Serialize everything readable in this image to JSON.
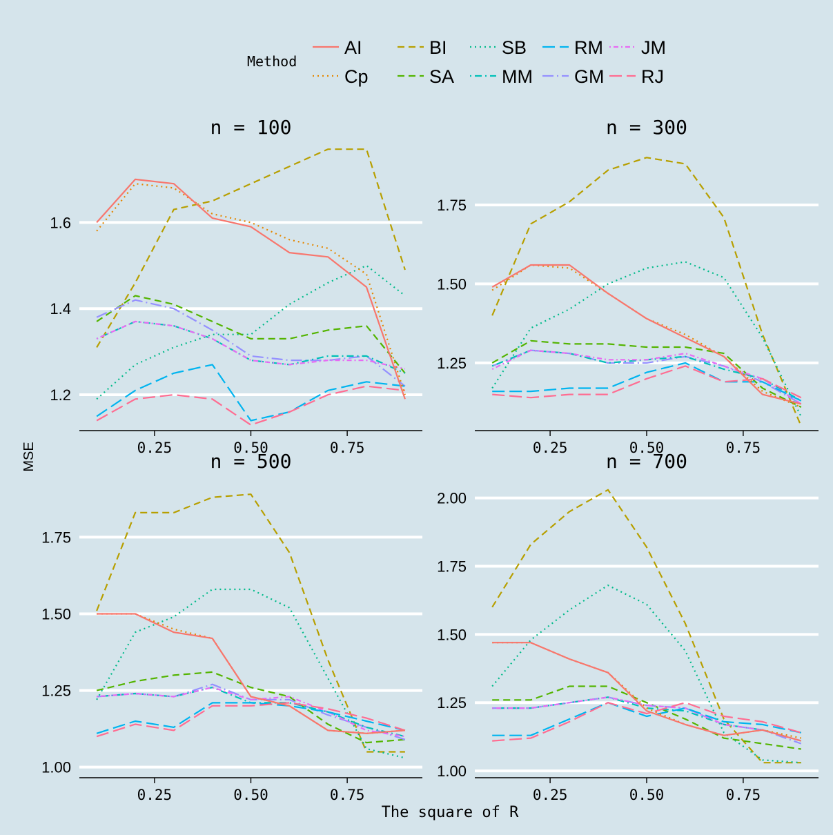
{
  "legend": {
    "title": "Method",
    "placement": "top",
    "methods": [
      {
        "name": "AI",
        "color": "#F8766D",
        "dash": "solid"
      },
      {
        "name": "BI",
        "color": "#B79F00",
        "dash": "dashed"
      },
      {
        "name": "SB",
        "color": "#00BA8A",
        "dash": "dotted"
      },
      {
        "name": "RM",
        "color": "#00B4EF",
        "dash": "longdash"
      },
      {
        "name": "JM",
        "color": "#E76BF3",
        "dash": "dotdash-pink"
      },
      {
        "name": "Cp",
        "color": "#E58700",
        "dash": "dotted"
      },
      {
        "name": "SA",
        "color": "#53B400",
        "dash": "dashed"
      },
      {
        "name": "MM",
        "color": "#00C0B8",
        "dash": "dotdash"
      },
      {
        "name": "GM",
        "color": "#9590FF",
        "dash": "longdashdot"
      },
      {
        "name": "RJ",
        "color": "#FF6C91",
        "dash": "longdash"
      }
    ]
  },
  "axes": {
    "xlabel": "The square of R",
    "ylabel": "MSE"
  },
  "colors": {
    "background": "#d5e4eb",
    "gridline": "#ffffff",
    "axis": "#000000"
  },
  "chart_data": [
    {
      "type": "line",
      "title": "n = 100",
      "grid": "horizontal-major",
      "x": [
        0.1,
        0.2,
        0.3,
        0.4,
        0.5,
        0.6,
        0.7,
        0.8,
        0.9
      ],
      "xlim": [
        0.055,
        0.945
      ],
      "ylim": [
        1.12,
        1.78
      ],
      "xticks": [
        0.25,
        0.5,
        0.75
      ],
      "xtick_labels": [
        "0.25",
        "0.50",
        "0.75"
      ],
      "yticks": [
        1.2,
        1.4,
        1.6
      ],
      "ytick_labels": [
        "1.2",
        "1.4",
        "1.6"
      ],
      "series": [
        {
          "name": "AI",
          "values": [
            1.6,
            1.7,
            1.69,
            1.61,
            1.59,
            1.53,
            1.52,
            1.45,
            1.19
          ]
        },
        {
          "name": "Cp",
          "values": [
            1.58,
            1.69,
            1.68,
            1.62,
            1.6,
            1.56,
            1.54,
            1.48,
            1.2
          ]
        },
        {
          "name": "BI",
          "values": [
            1.31,
            1.46,
            1.63,
            1.65,
            1.69,
            1.73,
            1.77,
            1.77,
            1.49
          ]
        },
        {
          "name": "SA",
          "values": [
            1.37,
            1.43,
            1.41,
            1.37,
            1.33,
            1.33,
            1.35,
            1.36,
            1.25
          ]
        },
        {
          "name": "SB",
          "values": [
            1.19,
            1.27,
            1.31,
            1.34,
            1.34,
            1.41,
            1.46,
            1.5,
            1.43
          ]
        },
        {
          "name": "MM",
          "values": [
            1.33,
            1.37,
            1.36,
            1.33,
            1.28,
            1.27,
            1.29,
            1.29,
            1.25
          ]
        },
        {
          "name": "RM",
          "values": [
            1.15,
            1.21,
            1.25,
            1.27,
            1.14,
            1.16,
            1.21,
            1.23,
            1.22
          ]
        },
        {
          "name": "GM",
          "values": [
            1.38,
            1.42,
            1.4,
            1.35,
            1.29,
            1.28,
            1.28,
            1.29,
            1.22
          ]
        },
        {
          "name": "JM",
          "values": [
            1.33,
            1.37,
            1.36,
            1.33,
            1.28,
            1.27,
            1.28,
            1.28,
            1.26
          ]
        },
        {
          "name": "RJ",
          "values": [
            1.14,
            1.19,
            1.2,
            1.19,
            1.13,
            1.16,
            1.2,
            1.22,
            1.21
          ]
        }
      ]
    },
    {
      "type": "line",
      "title": "n = 300",
      "grid": "horizontal-major",
      "x": [
        0.1,
        0.2,
        0.3,
        0.4,
        0.5,
        0.6,
        0.7,
        0.8,
        0.9
      ],
      "xlim": [
        0.055,
        0.945
      ],
      "ylim": [
        1.04,
        1.94
      ],
      "xticks": [
        0.25,
        0.5,
        0.75
      ],
      "xtick_labels": [
        "0.25",
        "0.50",
        "0.75"
      ],
      "yticks": [
        1.25,
        1.5,
        1.75
      ],
      "ytick_labels": [
        "1.25",
        "1.50",
        "1.75"
      ],
      "series": [
        {
          "name": "AI",
          "values": [
            1.49,
            1.56,
            1.56,
            1.47,
            1.39,
            1.33,
            1.27,
            1.15,
            1.12
          ]
        },
        {
          "name": "Cp",
          "values": [
            1.48,
            1.56,
            1.55,
            1.47,
            1.39,
            1.34,
            1.27,
            1.16,
            1.11
          ]
        },
        {
          "name": "BI",
          "values": [
            1.4,
            1.69,
            1.76,
            1.86,
            1.9,
            1.88,
            1.71,
            1.34,
            1.05
          ]
        },
        {
          "name": "SA",
          "values": [
            1.25,
            1.32,
            1.31,
            1.31,
            1.3,
            1.3,
            1.28,
            1.17,
            1.11
          ]
        },
        {
          "name": "SB",
          "values": [
            1.17,
            1.36,
            1.42,
            1.5,
            1.55,
            1.57,
            1.52,
            1.33,
            1.08
          ]
        },
        {
          "name": "MM",
          "values": [
            1.24,
            1.29,
            1.28,
            1.25,
            1.26,
            1.27,
            1.23,
            1.2,
            1.13
          ]
        },
        {
          "name": "RM",
          "values": [
            1.16,
            1.16,
            1.17,
            1.17,
            1.22,
            1.25,
            1.19,
            1.19,
            1.13
          ]
        },
        {
          "name": "GM",
          "values": [
            1.24,
            1.29,
            1.28,
            1.25,
            1.25,
            1.27,
            1.24,
            1.19,
            1.12
          ]
        },
        {
          "name": "JM",
          "values": [
            1.23,
            1.29,
            1.28,
            1.26,
            1.26,
            1.28,
            1.24,
            1.2,
            1.12
          ]
        },
        {
          "name": "RJ",
          "values": [
            1.15,
            1.14,
            1.15,
            1.15,
            1.2,
            1.24,
            1.19,
            1.2,
            1.14
          ]
        }
      ]
    },
    {
      "type": "line",
      "title": "n = 500",
      "grid": "horizontal-major",
      "x": [
        0.1,
        0.2,
        0.3,
        0.4,
        0.5,
        0.6,
        0.7,
        0.8,
        0.9
      ],
      "xlim": [
        0.055,
        0.945
      ],
      "ylim": [
        0.97,
        1.94
      ],
      "xticks": [
        0.25,
        0.5,
        0.75
      ],
      "xtick_labels": [
        "0.25",
        "0.50",
        "0.75"
      ],
      "yticks": [
        1.0,
        1.25,
        1.5,
        1.75
      ],
      "ytick_labels": [
        "1.00",
        "1.25",
        "1.50",
        "1.75"
      ],
      "series": [
        {
          "name": "AI",
          "values": [
            1.5,
            1.5,
            1.44,
            1.42,
            1.23,
            1.2,
            1.12,
            1.11,
            1.12
          ]
        },
        {
          "name": "Cp",
          "values": [
            1.5,
            1.5,
            1.45,
            1.42,
            1.23,
            1.2,
            1.12,
            1.11,
            1.12
          ]
        },
        {
          "name": "BI",
          "values": [
            1.51,
            1.83,
            1.83,
            1.88,
            1.89,
            1.7,
            1.35,
            1.05,
            1.05
          ]
        },
        {
          "name": "SA",
          "values": [
            1.25,
            1.28,
            1.3,
            1.31,
            1.26,
            1.23,
            1.14,
            1.08,
            1.09
          ]
        },
        {
          "name": "SB",
          "values": [
            1.22,
            1.44,
            1.49,
            1.58,
            1.58,
            1.52,
            1.29,
            1.06,
            1.03
          ]
        },
        {
          "name": "MM",
          "values": [
            1.23,
            1.24,
            1.23,
            1.26,
            1.21,
            1.21,
            1.18,
            1.13,
            1.1
          ]
        },
        {
          "name": "RM",
          "values": [
            1.11,
            1.15,
            1.13,
            1.21,
            1.21,
            1.2,
            1.18,
            1.15,
            1.12
          ]
        },
        {
          "name": "GM",
          "values": [
            1.23,
            1.24,
            1.23,
            1.27,
            1.22,
            1.22,
            1.17,
            1.13,
            1.09
          ]
        },
        {
          "name": "JM",
          "values": [
            1.23,
            1.24,
            1.23,
            1.26,
            1.22,
            1.23,
            1.18,
            1.12,
            1.1
          ]
        },
        {
          "name": "RJ",
          "values": [
            1.1,
            1.14,
            1.12,
            1.2,
            1.2,
            1.21,
            1.19,
            1.16,
            1.12
          ]
        }
      ]
    },
    {
      "type": "line",
      "title": "n = 700",
      "grid": "horizontal-major",
      "x": [
        0.1,
        0.2,
        0.3,
        0.4,
        0.5,
        0.6,
        0.7,
        0.8,
        0.9
      ],
      "xlim": [
        0.055,
        0.945
      ],
      "ylim": [
        0.98,
        2.07
      ],
      "xticks": [
        0.25,
        0.5,
        0.75
      ],
      "xtick_labels": [
        "0.25",
        "0.50",
        "0.75"
      ],
      "yticks": [
        1.0,
        1.25,
        1.5,
        1.75,
        2.0
      ],
      "ytick_labels": [
        "1.00",
        "1.25",
        "1.50",
        "1.75",
        "2.00"
      ],
      "series": [
        {
          "name": "AI",
          "values": [
            1.47,
            1.47,
            1.41,
            1.36,
            1.22,
            1.17,
            1.13,
            1.15,
            1.11
          ]
        },
        {
          "name": "Cp",
          "values": [
            1.47,
            1.47,
            1.41,
            1.36,
            1.23,
            1.17,
            1.13,
            1.15,
            1.12
          ]
        },
        {
          "name": "BI",
          "values": [
            1.6,
            1.83,
            1.95,
            2.03,
            1.82,
            1.54,
            1.19,
            1.03,
            1.03
          ]
        },
        {
          "name": "SA",
          "values": [
            1.26,
            1.26,
            1.31,
            1.31,
            1.25,
            1.19,
            1.12,
            1.1,
            1.08
          ]
        },
        {
          "name": "SB",
          "values": [
            1.31,
            1.48,
            1.59,
            1.68,
            1.61,
            1.44,
            1.14,
            1.04,
            1.03
          ]
        },
        {
          "name": "MM",
          "values": [
            1.23,
            1.23,
            1.25,
            1.27,
            1.23,
            1.22,
            1.17,
            1.15,
            1.11
          ]
        },
        {
          "name": "RM",
          "values": [
            1.13,
            1.13,
            1.19,
            1.25,
            1.2,
            1.23,
            1.18,
            1.17,
            1.14
          ]
        },
        {
          "name": "GM",
          "values": [
            1.23,
            1.23,
            1.25,
            1.27,
            1.24,
            1.23,
            1.17,
            1.15,
            1.1
          ]
        },
        {
          "name": "JM",
          "values": [
            1.23,
            1.23,
            1.25,
            1.27,
            1.24,
            1.23,
            1.17,
            1.15,
            1.11
          ]
        },
        {
          "name": "RJ",
          "values": [
            1.11,
            1.12,
            1.18,
            1.25,
            1.21,
            1.25,
            1.2,
            1.18,
            1.14
          ]
        }
      ]
    }
  ]
}
